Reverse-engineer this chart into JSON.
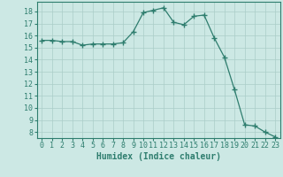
{
  "x": [
    0,
    1,
    2,
    3,
    4,
    5,
    6,
    7,
    8,
    9,
    10,
    11,
    12,
    13,
    14,
    15,
    16,
    17,
    18,
    19,
    20,
    21,
    22,
    23
  ],
  "y": [
    15.6,
    15.6,
    15.5,
    15.5,
    15.2,
    15.3,
    15.3,
    15.3,
    15.4,
    16.3,
    17.9,
    18.1,
    18.3,
    17.1,
    16.9,
    17.6,
    17.7,
    15.8,
    14.2,
    11.5,
    8.6,
    8.5,
    8.0,
    7.6
  ],
  "line_color": "#2e7d6e",
  "marker": "+",
  "marker_size": 4,
  "marker_lw": 1.0,
  "bg_color": "#cce8e4",
  "grid_color": "#aacdc8",
  "tick_label_color": "#2e7d6e",
  "xlabel": "Humidex (Indice chaleur)",
  "xlabel_color": "#2e7d6e",
  "xlabel_fontsize": 7,
  "tick_fontsize": 6,
  "ylim_min": 7.5,
  "ylim_max": 18.8,
  "yticks": [
    8,
    9,
    10,
    11,
    12,
    13,
    14,
    15,
    16,
    17,
    18
  ],
  "xlim_min": -0.5,
  "xlim_max": 23.5,
  "xticks": [
    0,
    1,
    2,
    3,
    4,
    5,
    6,
    7,
    8,
    9,
    10,
    11,
    12,
    13,
    14,
    15,
    16,
    17,
    18,
    19,
    20,
    21,
    22,
    23
  ]
}
